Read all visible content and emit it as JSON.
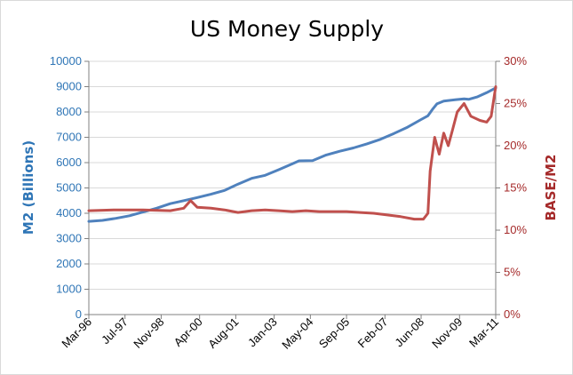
{
  "chart_data": {
    "type": "line",
    "title": "US Money Supply",
    "ylabel_left": "M2 (Billions)",
    "ylabel_right": "BASE/M2",
    "ylim_left": [
      0,
      10000
    ],
    "ylim_right": [
      0,
      0.3
    ],
    "xlim": [
      "1996-03",
      "2011-03"
    ],
    "grid": "horizontal",
    "left_ticks": [
      "0",
      "1000",
      "2000",
      "3000",
      "4000",
      "5000",
      "6000",
      "7000",
      "8000",
      "9000",
      "10000"
    ],
    "right_ticks": [
      "0%",
      "5%",
      "10%",
      "15%",
      "20%",
      "25%",
      "30%"
    ],
    "x_ticks": [
      {
        "label": "Mar-96",
        "date": "1996-03"
      },
      {
        "label": "Jul-97",
        "date": "1997-07"
      },
      {
        "label": "Nov-98",
        "date": "1998-11"
      },
      {
        "label": "Apr-00",
        "date": "2000-04"
      },
      {
        "label": "Aug-01",
        "date": "2001-08"
      },
      {
        "label": "Jan-03",
        "date": "2003-01"
      },
      {
        "label": "May-04",
        "date": "2004-05"
      },
      {
        "label": "Sep-05",
        "date": "2005-09"
      },
      {
        "label": "Feb-07",
        "date": "2007-02"
      },
      {
        "label": "Jun-08",
        "date": "2008-06"
      },
      {
        "label": "Nov-09",
        "date": "2009-11"
      },
      {
        "label": "Mar-11",
        "date": "2011-03"
      }
    ],
    "series": [
      {
        "axis": "left",
        "color": "#4f81bd",
        "points": [
          [
            "1996-03",
            3680
          ],
          [
            "1996-09",
            3720
          ],
          [
            "1997-03",
            3800
          ],
          [
            "1997-09",
            3900
          ],
          [
            "1998-03",
            4050
          ],
          [
            "1998-09",
            4200
          ],
          [
            "1999-03",
            4380
          ],
          [
            "1999-09",
            4500
          ],
          [
            "2000-03",
            4620
          ],
          [
            "2000-09",
            4750
          ],
          [
            "2001-03",
            4900
          ],
          [
            "2001-09",
            5150
          ],
          [
            "2002-03",
            5380
          ],
          [
            "2002-09",
            5500
          ],
          [
            "2003-03",
            5720
          ],
          [
            "2003-09",
            5950
          ],
          [
            "2003-12",
            6070
          ],
          [
            "2004-06",
            6080
          ],
          [
            "2004-12",
            6300
          ],
          [
            "2005-06",
            6450
          ],
          [
            "2005-12",
            6580
          ],
          [
            "2006-06",
            6740
          ],
          [
            "2006-12",
            6920
          ],
          [
            "2007-06",
            7150
          ],
          [
            "2007-12",
            7400
          ],
          [
            "2008-06",
            7700
          ],
          [
            "2008-09",
            7850
          ],
          [
            "2008-11",
            8100
          ],
          [
            "2009-01",
            8320
          ],
          [
            "2009-04",
            8430
          ],
          [
            "2009-09",
            8480
          ],
          [
            "2010-01",
            8520
          ],
          [
            "2010-03",
            8500
          ],
          [
            "2010-07",
            8600
          ],
          [
            "2010-11",
            8760
          ],
          [
            "2011-03",
            8950
          ]
        ]
      },
      {
        "axis": "right",
        "color": "#c0504d",
        "points": [
          [
            "1996-03",
            0.123
          ],
          [
            "1997-03",
            0.124
          ],
          [
            "1998-03",
            0.124
          ],
          [
            "1999-03",
            0.123
          ],
          [
            "1999-09",
            0.126
          ],
          [
            "1999-12",
            0.135
          ],
          [
            "2000-03",
            0.127
          ],
          [
            "2000-09",
            0.126
          ],
          [
            "2001-03",
            0.124
          ],
          [
            "2001-09",
            0.121
          ],
          [
            "2002-03",
            0.123
          ],
          [
            "2002-09",
            0.124
          ],
          [
            "2003-03",
            0.123
          ],
          [
            "2003-09",
            0.122
          ],
          [
            "2004-03",
            0.123
          ],
          [
            "2004-09",
            0.122
          ],
          [
            "2005-03",
            0.122
          ],
          [
            "2005-09",
            0.122
          ],
          [
            "2006-03",
            0.121
          ],
          [
            "2006-09",
            0.12
          ],
          [
            "2007-03",
            0.118
          ],
          [
            "2007-09",
            0.116
          ],
          [
            "2008-03",
            0.113
          ],
          [
            "2008-07",
            0.113
          ],
          [
            "2008-09",
            0.12
          ],
          [
            "2008-10",
            0.17
          ],
          [
            "2008-12",
            0.21
          ],
          [
            "2009-02",
            0.19
          ],
          [
            "2009-04",
            0.215
          ],
          [
            "2009-06",
            0.2
          ],
          [
            "2009-08",
            0.22
          ],
          [
            "2009-10",
            0.24
          ],
          [
            "2010-01",
            0.25
          ],
          [
            "2010-04",
            0.235
          ],
          [
            "2010-08",
            0.23
          ],
          [
            "2010-11",
            0.228
          ],
          [
            "2011-01",
            0.235
          ],
          [
            "2011-03",
            0.27
          ]
        ]
      }
    ]
  }
}
